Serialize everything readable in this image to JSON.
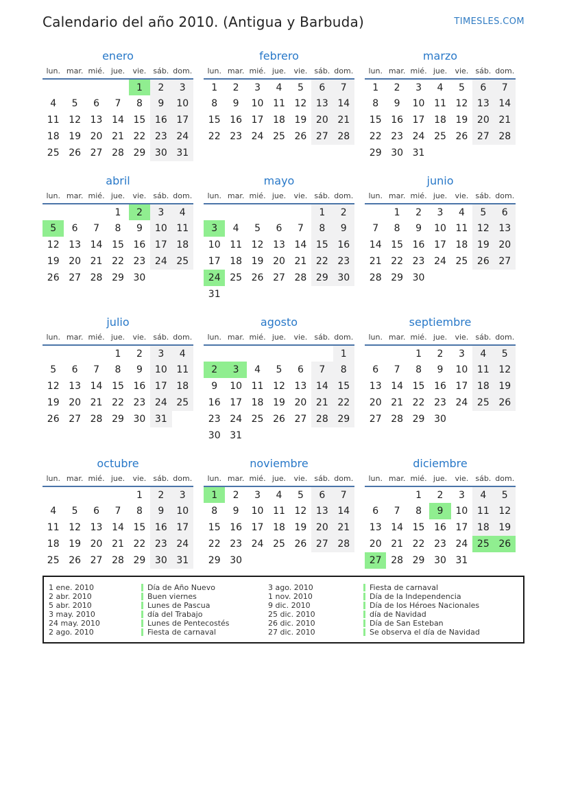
{
  "header": {
    "title": "Calendario del año 2010. (Antigua y Barbuda)",
    "site": "TIMESLES.COM"
  },
  "colors": {
    "accent_blue": "#2878c8",
    "line_blue": "#4a74a8",
    "holiday_green": "#90ee90",
    "weekend_gray": "#f1f1f2"
  },
  "weekday_headers": [
    "lun.",
    "mar.",
    "mié.",
    "jue.",
    "vie.",
    "sáb.",
    "dom."
  ],
  "months": [
    {
      "name": "enero",
      "holidays": [
        1
      ],
      "weeks": [
        [
          null,
          null,
          null,
          null,
          1,
          2,
          3
        ],
        [
          4,
          5,
          6,
          7,
          8,
          9,
          10
        ],
        [
          11,
          12,
          13,
          14,
          15,
          16,
          17
        ],
        [
          18,
          19,
          20,
          21,
          22,
          23,
          24
        ],
        [
          25,
          26,
          27,
          28,
          29,
          30,
          31
        ]
      ]
    },
    {
      "name": "febrero",
      "holidays": [],
      "weeks": [
        [
          1,
          2,
          3,
          4,
          5,
          6,
          7
        ],
        [
          8,
          9,
          10,
          11,
          12,
          13,
          14
        ],
        [
          15,
          16,
          17,
          18,
          19,
          20,
          21
        ],
        [
          22,
          23,
          24,
          25,
          26,
          27,
          28
        ]
      ]
    },
    {
      "name": "marzo",
      "holidays": [],
      "weeks": [
        [
          1,
          2,
          3,
          4,
          5,
          6,
          7
        ],
        [
          8,
          9,
          10,
          11,
          12,
          13,
          14
        ],
        [
          15,
          16,
          17,
          18,
          19,
          20,
          21
        ],
        [
          22,
          23,
          24,
          25,
          26,
          27,
          28
        ],
        [
          29,
          30,
          31,
          null,
          null,
          null,
          null
        ]
      ]
    },
    {
      "name": "abril",
      "holidays": [
        2,
        5
      ],
      "weeks": [
        [
          null,
          null,
          null,
          1,
          2,
          3,
          4
        ],
        [
          5,
          6,
          7,
          8,
          9,
          10,
          11
        ],
        [
          12,
          13,
          14,
          15,
          16,
          17,
          18
        ],
        [
          19,
          20,
          21,
          22,
          23,
          24,
          25
        ],
        [
          26,
          27,
          28,
          29,
          30,
          null,
          null
        ]
      ]
    },
    {
      "name": "mayo",
      "holidays": [
        3,
        24
      ],
      "weeks": [
        [
          null,
          null,
          null,
          null,
          null,
          1,
          2
        ],
        [
          3,
          4,
          5,
          6,
          7,
          8,
          9
        ],
        [
          10,
          11,
          12,
          13,
          14,
          15,
          16
        ],
        [
          17,
          18,
          19,
          20,
          21,
          22,
          23
        ],
        [
          24,
          25,
          26,
          27,
          28,
          29,
          30
        ],
        [
          31,
          null,
          null,
          null,
          null,
          null,
          null
        ]
      ]
    },
    {
      "name": "junio",
      "holidays": [],
      "weeks": [
        [
          null,
          1,
          2,
          3,
          4,
          5,
          6
        ],
        [
          7,
          8,
          9,
          10,
          11,
          12,
          13
        ],
        [
          14,
          15,
          16,
          17,
          18,
          19,
          20
        ],
        [
          21,
          22,
          23,
          24,
          25,
          26,
          27
        ],
        [
          28,
          29,
          30,
          null,
          null,
          null,
          null
        ]
      ]
    },
    {
      "name": "julio",
      "holidays": [],
      "weeks": [
        [
          null,
          null,
          null,
          1,
          2,
          3,
          4
        ],
        [
          5,
          6,
          7,
          8,
          9,
          10,
          11
        ],
        [
          12,
          13,
          14,
          15,
          16,
          17,
          18
        ],
        [
          19,
          20,
          21,
          22,
          23,
          24,
          25
        ],
        [
          26,
          27,
          28,
          29,
          30,
          31,
          null
        ]
      ]
    },
    {
      "name": "agosto",
      "holidays": [
        2,
        3
      ],
      "weeks": [
        [
          null,
          null,
          null,
          null,
          null,
          null,
          1
        ],
        [
          2,
          3,
          4,
          5,
          6,
          7,
          8
        ],
        [
          9,
          10,
          11,
          12,
          13,
          14,
          15
        ],
        [
          16,
          17,
          18,
          19,
          20,
          21,
          22
        ],
        [
          23,
          24,
          25,
          26,
          27,
          28,
          29
        ],
        [
          30,
          31,
          null,
          null,
          null,
          null,
          null
        ]
      ]
    },
    {
      "name": "septiembre",
      "holidays": [],
      "weeks": [
        [
          null,
          null,
          1,
          2,
          3,
          4,
          5
        ],
        [
          6,
          7,
          8,
          9,
          10,
          11,
          12
        ],
        [
          13,
          14,
          15,
          16,
          17,
          18,
          19
        ],
        [
          20,
          21,
          22,
          23,
          24,
          25,
          26
        ],
        [
          27,
          28,
          29,
          30,
          null,
          null,
          null
        ]
      ]
    },
    {
      "name": "octubre",
      "holidays": [],
      "weeks": [
        [
          null,
          null,
          null,
          null,
          1,
          2,
          3
        ],
        [
          4,
          5,
          6,
          7,
          8,
          9,
          10
        ],
        [
          11,
          12,
          13,
          14,
          15,
          16,
          17
        ],
        [
          18,
          19,
          20,
          21,
          22,
          23,
          24
        ],
        [
          25,
          26,
          27,
          28,
          29,
          30,
          31
        ]
      ]
    },
    {
      "name": "noviembre",
      "holidays": [
        1
      ],
      "weeks": [
        [
          1,
          2,
          3,
          4,
          5,
          6,
          7
        ],
        [
          8,
          9,
          10,
          11,
          12,
          13,
          14
        ],
        [
          15,
          16,
          17,
          18,
          19,
          20,
          21
        ],
        [
          22,
          23,
          24,
          25,
          26,
          27,
          28
        ],
        [
          29,
          30,
          null,
          null,
          null,
          null,
          null
        ]
      ]
    },
    {
      "name": "diciembre",
      "holidays": [
        9,
        25,
        26,
        27
      ],
      "weeks": [
        [
          null,
          null,
          1,
          2,
          3,
          4,
          5
        ],
        [
          6,
          7,
          8,
          9,
          10,
          11,
          12
        ],
        [
          13,
          14,
          15,
          16,
          17,
          18,
          19
        ],
        [
          20,
          21,
          22,
          23,
          24,
          25,
          26
        ],
        [
          27,
          28,
          29,
          30,
          31,
          null,
          null
        ]
      ]
    }
  ],
  "legend": {
    "columns": [
      [
        {
          "date": "1 ene. 2010",
          "name": "Día de Año Nuevo"
        },
        {
          "date": "2 abr. 2010",
          "name": "Buen viernes"
        },
        {
          "date": "5 abr. 2010",
          "name": "Lunes de Pascua"
        },
        {
          "date": "3 may. 2010",
          "name": "día del Trabajo"
        },
        {
          "date": "24 may. 2010",
          "name": "Lunes de Pentecostés"
        },
        {
          "date": "2 ago. 2010",
          "name": "Fiesta de carnaval"
        }
      ],
      [
        {
          "date": "3 ago. 2010",
          "name": "Fiesta de carnaval"
        },
        {
          "date": "1 nov. 2010",
          "name": "Día de la Independencia"
        },
        {
          "date": "9 dic. 2010",
          "name": "Día de los Héroes Nacionales"
        },
        {
          "date": "25 dic. 2010",
          "name": "día de Navidad"
        },
        {
          "date": "26 dic. 2010",
          "name": "Día de San Esteban"
        },
        {
          "date": "27 dic. 2010",
          "name": "Se observa el día de Navidad"
        }
      ]
    ]
  }
}
